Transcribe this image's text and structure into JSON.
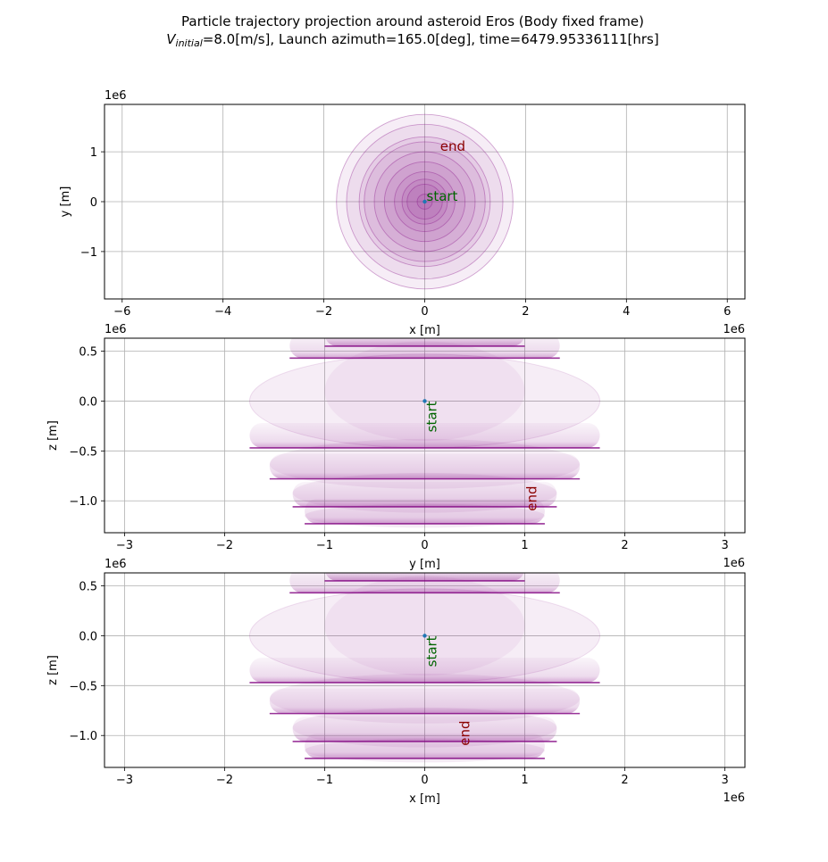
{
  "figure": {
    "title_line1": "Particle trajectory projection around asteroid Eros (Body fixed frame)",
    "title_v": "V",
    "title_v_sub": "initial",
    "title_line2_rest": "=8.0[m/s], Launch azimuth=165.0[deg], time=6479.95336111[hrs]"
  },
  "chart_data": [
    {
      "type": "line",
      "name": "xy-projection",
      "xlabel": "x [m]",
      "ylabel": "y [m]",
      "x_offset_label": "1e6",
      "y_offset_label": "1e6",
      "xlim": [
        -6.35,
        6.35
      ],
      "ylim": [
        -1.95,
        1.95
      ],
      "xticks": [
        -6,
        -4,
        -2,
        0,
        2,
        4,
        6
      ],
      "yticks": [
        -1,
        0,
        1
      ],
      "xtick_labels": [
        "−6",
        "−4",
        "−2",
        "0",
        "2",
        "4",
        "6"
      ],
      "ytick_labels": [
        "−1",
        "0",
        "1"
      ],
      "grid": true,
      "trajectory_color": "#800080",
      "start_marker_color": "#1f77b4",
      "rings_radius": [
        0.15,
        0.35,
        0.45,
        0.6,
        0.8,
        1.0,
        1.2,
        1.3,
        1.55,
        1.75
      ],
      "annotations": [
        {
          "text": "start",
          "x": 0.0,
          "y": 0.0,
          "color": "#006400"
        },
        {
          "text": "end",
          "x": 0.27,
          "y": 1.0,
          "color": "#8b0000"
        }
      ]
    },
    {
      "type": "line",
      "name": "yz-projection",
      "xlabel": "y [m]",
      "ylabel": "z [m]",
      "x_offset_label": "1e6",
      "y_offset_label": "1e6",
      "xlim": [
        -3.2,
        3.2
      ],
      "ylim": [
        -1.32,
        0.63
      ],
      "xticks": [
        -3,
        -2,
        -1,
        0,
        1,
        2,
        3
      ],
      "yticks": [
        0.5,
        0.0,
        -0.5,
        -1.0
      ],
      "xtick_labels": [
        "−3",
        "−2",
        "−1",
        "0",
        "1",
        "2",
        "3"
      ],
      "ytick_labels": [
        "0.5",
        "0.0",
        "−0.5",
        "−1.0"
      ],
      "grid": true,
      "trajectory_color": "#800080",
      "start_marker_color": "#1f77b4",
      "layers": [
        {
          "z": 0.55,
          "half_width": 1.0
        },
        {
          "z": 0.43,
          "half_width": 1.35
        },
        {
          "z": -0.47,
          "half_width": 1.75
        },
        {
          "z": -0.78,
          "half_width": 1.55
        },
        {
          "z": -1.06,
          "half_width": 1.32
        },
        {
          "z": -1.23,
          "half_width": 1.2
        }
      ],
      "annotations": [
        {
          "text": "start",
          "x": 0.0,
          "y": 0.0,
          "color": "#006400",
          "rotation": -90
        },
        {
          "text": "end",
          "x": 1.0,
          "y": -0.85,
          "color": "#8b0000",
          "rotation": -90
        }
      ]
    },
    {
      "type": "line",
      "name": "xz-projection",
      "xlabel": "x [m]",
      "ylabel": "z [m]",
      "x_offset_label": "1e6",
      "y_offset_label": "1e6",
      "xlim": [
        -3.2,
        3.2
      ],
      "ylim": [
        -1.32,
        0.63
      ],
      "xticks": [
        -3,
        -2,
        -1,
        0,
        1,
        2,
        3
      ],
      "yticks": [
        0.5,
        0.0,
        -0.5,
        -1.0
      ],
      "xtick_labels": [
        "−3",
        "−2",
        "−1",
        "0",
        "1",
        "2",
        "3"
      ],
      "ytick_labels": [
        "0.5",
        "0.0",
        "−0.5",
        "−1.0"
      ],
      "grid": true,
      "trajectory_color": "#800080",
      "start_marker_color": "#1f77b4",
      "layers": [
        {
          "z": 0.55,
          "half_width": 1.0
        },
        {
          "z": 0.43,
          "half_width": 1.35
        },
        {
          "z": -0.47,
          "half_width": 1.75
        },
        {
          "z": -0.78,
          "half_width": 1.55
        },
        {
          "z": -1.06,
          "half_width": 1.32
        },
        {
          "z": -1.23,
          "half_width": 1.2
        }
      ],
      "annotations": [
        {
          "text": "start",
          "x": 0.0,
          "y": 0.0,
          "color": "#006400",
          "rotation": -90
        },
        {
          "text": "end",
          "x": 0.33,
          "y": -0.85,
          "color": "#8b0000",
          "rotation": -90
        }
      ]
    }
  ]
}
